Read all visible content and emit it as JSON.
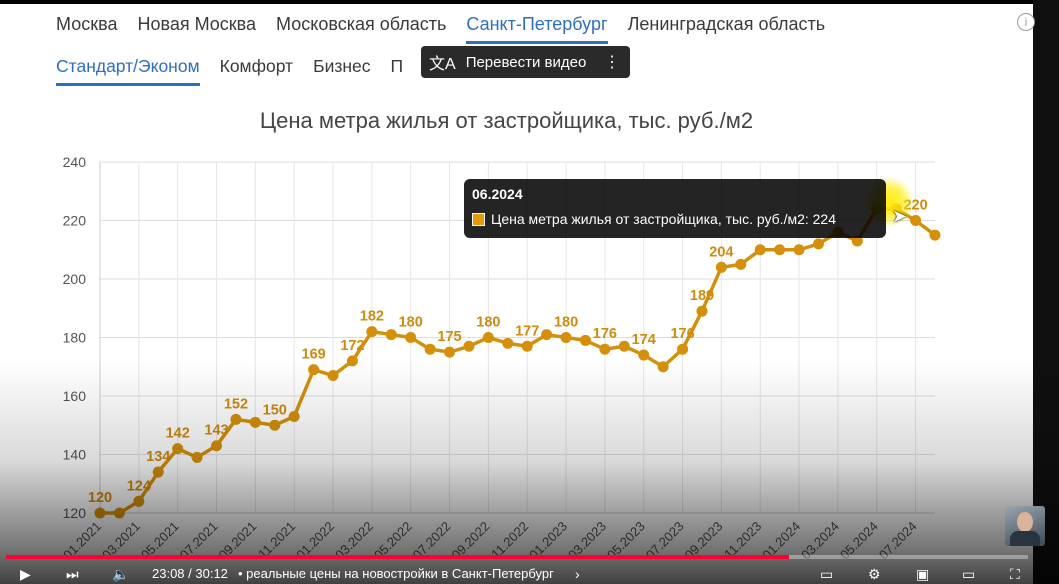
{
  "tabs_region": [
    "Москва",
    "Новая Москва",
    "Московская область",
    "Санкт-Петербург",
    "Ленинградская область"
  ],
  "tabs_region_active": "Санкт-Петербург",
  "tabs_class": [
    "Стандарт/Эконом",
    "Комфорт",
    "Бизнес",
    "П"
  ],
  "tabs_class_active": "Стандарт/Эконом",
  "translate_pill": {
    "icon": "translate-icon",
    "label": "Перевести видео",
    "menu": "⋮"
  },
  "info_icon": "i",
  "tooltip": {
    "date": "06.2024",
    "line": "Цена метра жилья от застройщика, тыс. руб./м2: 224"
  },
  "player": {
    "time": "23:08 / 30:12",
    "title": "• реальные цены на новостройки в Санкт-Петербург",
    "progress_fraction": 0.766
  },
  "colors": {
    "series": "#d4900a",
    "label": "#d08b0a",
    "accent": "#2f6fc0",
    "progress": "#ff0033"
  },
  "chart_data": {
    "type": "line",
    "title": "Цена метра жилья от застройщика, тыс. руб./м2",
    "xlabel": "",
    "ylabel": "",
    "ylim": [
      120,
      240
    ],
    "yticks": [
      120,
      140,
      160,
      180,
      200,
      220,
      240
    ],
    "grid": true,
    "x": [
      "01.2021",
      "02.2021",
      "03.2021",
      "04.2021",
      "05.2021",
      "06.2021",
      "07.2021",
      "08.2021",
      "09.2021",
      "10.2021",
      "11.2021",
      "12.2021",
      "01.2022",
      "02.2022",
      "03.2022",
      "04.2022",
      "05.2022",
      "06.2022",
      "07.2022",
      "08.2022",
      "09.2022",
      "10.2022",
      "11.2022",
      "12.2022",
      "01.2023",
      "02.2023",
      "03.2023",
      "04.2023",
      "05.2023",
      "06.2023",
      "07.2023",
      "08.2023",
      "09.2023",
      "10.2023",
      "11.2023",
      "12.2023",
      "01.2024",
      "02.2024",
      "03.2024",
      "04.2024",
      "05.2024",
      "06.2024",
      "07.2024",
      "08.2024"
    ],
    "xtick_labels": [
      "01.2021",
      "03.2021",
      "05.2021",
      "07.2021",
      "09.2021",
      "11.2021",
      "01.2022",
      "03.2022",
      "05.2022",
      "07.2022",
      "09.2022",
      "11.2022",
      "01.2023",
      "03.2023",
      "05.2023",
      "07.2023",
      "09.2023",
      "11.2023",
      "01.2024",
      "03.2024",
      "05.2024",
      "07.2024"
    ],
    "series": [
      {
        "values": [
          120,
          120,
          124,
          134,
          142,
          139,
          143,
          152,
          151,
          150,
          153,
          169,
          167,
          172,
          182,
          181,
          180,
          176,
          175,
          177,
          180,
          178,
          177,
          181,
          180,
          179,
          176,
          177,
          174,
          170,
          176,
          189,
          204,
          205,
          210,
          210,
          210,
          212,
          216,
          213,
          224,
          224,
          220,
          215
        ],
        "labels": [
          "120",
          "",
          "124",
          "134",
          "142",
          "",
          "143",
          "152",
          "",
          "150",
          "",
          "169",
          "",
          "172",
          "182",
          "",
          "180",
          "",
          "175",
          "",
          "180",
          "",
          "177",
          "",
          "180",
          "",
          "176",
          "",
          "174",
          "",
          "176",
          "189",
          "204",
          "",
          "",
          "",
          "",
          "",
          "",
          "",
          "",
          "",
          "220",
          ""
        ]
      }
    ]
  }
}
